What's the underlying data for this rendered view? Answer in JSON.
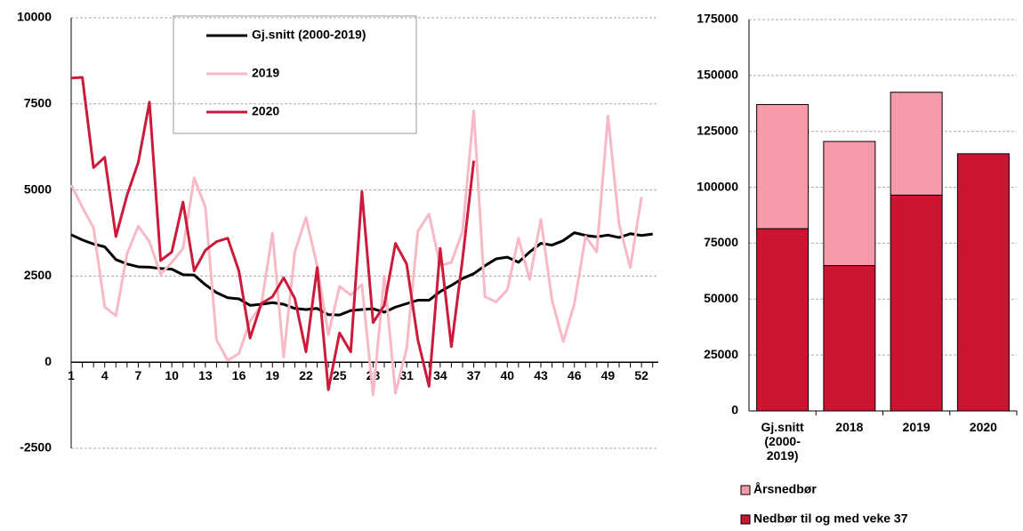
{
  "chart_data": [
    {
      "type": "line",
      "x": [
        1,
        2,
        3,
        4,
        5,
        6,
        7,
        8,
        9,
        10,
        11,
        12,
        13,
        14,
        15,
        16,
        17,
        18,
        19,
        20,
        21,
        22,
        23,
        24,
        25,
        26,
        27,
        28,
        29,
        30,
        31,
        32,
        33,
        34,
        35,
        36,
        37,
        38,
        39,
        40,
        41,
        42,
        43,
        44,
        45,
        46,
        47,
        48,
        49,
        50,
        51,
        52,
        53
      ],
      "xlim": [
        1,
        53.5
      ],
      "xticks": [
        1,
        4,
        7,
        10,
        13,
        16,
        19,
        22,
        25,
        28,
        31,
        34,
        37,
        40,
        43,
        46,
        49,
        52
      ],
      "ylim": [
        -2500,
        10000
      ],
      "yticks": [
        -2500,
        0,
        2500,
        5000,
        7500,
        10000
      ],
      "grid": true,
      "series": [
        {
          "name": "Gj.snitt (2000-2019)",
          "color": "#000000",
          "values": [
            3700,
            3550,
            3430,
            3350,
            2980,
            2850,
            2770,
            2760,
            2720,
            2700,
            2540,
            2530,
            2250,
            2020,
            1870,
            1840,
            1650,
            1680,
            1730,
            1680,
            1560,
            1530,
            1560,
            1380,
            1370,
            1500,
            1530,
            1550,
            1450,
            1600,
            1700,
            1800,
            1800,
            2050,
            2230,
            2430,
            2570,
            2800,
            3000,
            3050,
            2900,
            3200,
            3450,
            3400,
            3530,
            3760,
            3680,
            3640,
            3690,
            3620,
            3730,
            3680,
            3720
          ]
        },
        {
          "name": "2019",
          "color": "#f7b9c5",
          "values": [
            5150,
            4500,
            3900,
            1600,
            1350,
            3150,
            3950,
            3500,
            2550,
            2900,
            3300,
            5350,
            4500,
            650,
            50,
            250,
            1200,
            1650,
            3750,
            150,
            3200,
            4200,
            2800,
            800,
            2200,
            1950,
            2250,
            -950,
            2500,
            -900,
            400,
            3800,
            4300,
            2800,
            2900,
            3800,
            7300,
            1900,
            1750,
            2100,
            3600,
            2400,
            4150,
            1800,
            600,
            1700,
            3650,
            3200,
            7150,
            4000,
            2750,
            4800,
            null
          ]
        },
        {
          "name": "2020",
          "color": "#cc1a3a",
          "values": [
            8250,
            8270,
            5650,
            5950,
            3650,
            4850,
            5800,
            7550,
            2950,
            3200,
            4650,
            2650,
            3250,
            3500,
            3600,
            2650,
            700,
            1700,
            1900,
            2450,
            1850,
            300,
            2750,
            -800,
            850,
            300,
            4950,
            1150,
            1650,
            3450,
            2850,
            650,
            -700,
            3300,
            450,
            3000,
            5850,
            null,
            null,
            null,
            null,
            null,
            null,
            null,
            null,
            null,
            null,
            null,
            null,
            null,
            null,
            null,
            null
          ]
        }
      ]
    },
    {
      "type": "stacked-bar",
      "categories": [
        "Gj.snitt (2000-2019)",
        "2018",
        "2019",
        "2020"
      ],
      "ylim": [
        0,
        175000
      ],
      "yticks": [
        0,
        25000,
        50000,
        75000,
        100000,
        125000,
        150000,
        175000
      ],
      "grid": true,
      "series": [
        {
          "name": "Nedbør til og med veke 37",
          "color": "#cc1533",
          "values": [
            81500,
            65000,
            96500,
            115000
          ]
        },
        {
          "name": "Årsnedbør",
          "color": "#f59aa8",
          "values": [
            55500,
            55500,
            46000,
            0
          ]
        }
      ]
    }
  ]
}
